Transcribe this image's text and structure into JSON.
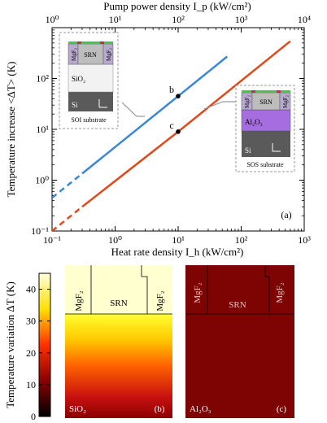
{
  "chart_data": [
    {
      "type": "line",
      "panel_label": "(a)",
      "xlabel": "Heat rate density I_h (kW/cm²)",
      "top_xlabel": "Pump power density I_p (kW/cm²)",
      "ylabel": "Temperature increase <ΔT> (K)",
      "xscale": "log",
      "yscale": "log",
      "xlim": [
        0.1,
        1000
      ],
      "ylim": [
        0.1,
        1000
      ],
      "top_xlim": [
        1,
        10000
      ],
      "x_ticks": [
        "10⁻¹",
        "10⁰",
        "10¹",
        "10²",
        "10³"
      ],
      "y_ticks": [
        "10⁻¹",
        "10⁰",
        "10¹",
        "10²"
      ],
      "top_ticks": [
        "10⁰",
        "10¹",
        "10²",
        "10³",
        "10⁴"
      ],
      "series": [
        {
          "color": "#3a86d8",
          "points": [
            [
              0.1,
              0.45
            ],
            [
              0.3,
              1.35
            ],
            [
              10,
              45
            ],
            [
              60,
              270
            ]
          ],
          "dashed_until": 0.3,
          "marker": {
            "x": 10,
            "y": 45,
            "label": "b"
          }
        },
        {
          "color": "#e0491b",
          "points": [
            [
              0.1,
              0.1
            ],
            [
              0.3,
              0.3
            ],
            [
              10,
              9
            ],
            [
              600,
              540
            ]
          ],
          "dashed_until": 0.3,
          "marker": {
            "x": 10,
            "y": 9,
            "label": "c"
          }
        }
      ],
      "insets": [
        {
          "caption": "SOI substrate",
          "layers": [
            "MgF₂",
            "SRN",
            "MgF₂",
            "SiO₂",
            "Si"
          ]
        },
        {
          "caption": "SOS substrate",
          "layers": [
            "MgF₂",
            "SRN",
            "MgF₂",
            "Al₂O₃",
            "Si"
          ]
        }
      ]
    },
    {
      "type": "heatmap",
      "colorbar": {
        "label": "Temperature variation ΔT (K)",
        "range": [
          0,
          45
        ],
        "ticks": [
          0,
          10,
          20,
          30,
          40
        ],
        "colormap": [
          "#000000",
          "#8b0000",
          "#ff3000",
          "#ffe000",
          "#ffffe0"
        ]
      },
      "panels": [
        {
          "panel_label": "(b)",
          "substrate": "SiO₂",
          "layer_labels": [
            "MgF₂",
            "SRN",
            "MgF₂"
          ]
        },
        {
          "panel_label": "(c)",
          "substrate": "Al₂O₃",
          "layer_labels": [
            "MgF₂",
            "SRN",
            "MgF₂"
          ]
        }
      ]
    }
  ]
}
